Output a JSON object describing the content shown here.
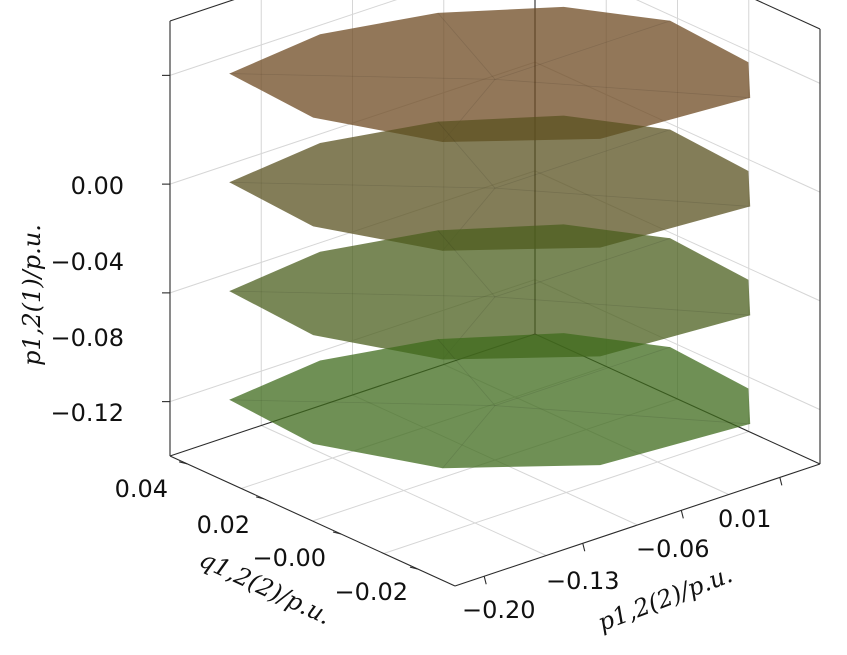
{
  "chart_data": {
    "type": "3d-surface",
    "axes": {
      "z": {
        "label": "p1,2(1)/p.u.",
        "ticks": [
          "0.00",
          "−0.04",
          "−0.08",
          "−0.12"
        ],
        "tick_values": [
          0.0,
          -0.04,
          -0.08,
          -0.12
        ]
      },
      "q": {
        "label": "q1,2(2)/p.u.",
        "ticks": [
          "0.04",
          "0.02",
          "−0.00",
          "−0.02"
        ],
        "tick_values": [
          0.04,
          0.02,
          0.0,
          -0.02
        ]
      },
      "p": {
        "label": "p1,2(2)/p.u.",
        "ticks": [
          "−0.20",
          "−0.13",
          "−0.06",
          "0.01"
        ],
        "tick_values": [
          -0.2,
          -0.13,
          -0.06,
          0.01
        ]
      }
    },
    "surface_levels": [
      0.0,
      -0.04,
      -0.08,
      -0.12
    ],
    "surface_colors": [
      "#6e4a22",
      "#5a5220",
      "#4b5f1e",
      "#3f6b1c"
    ],
    "grid": true
  }
}
